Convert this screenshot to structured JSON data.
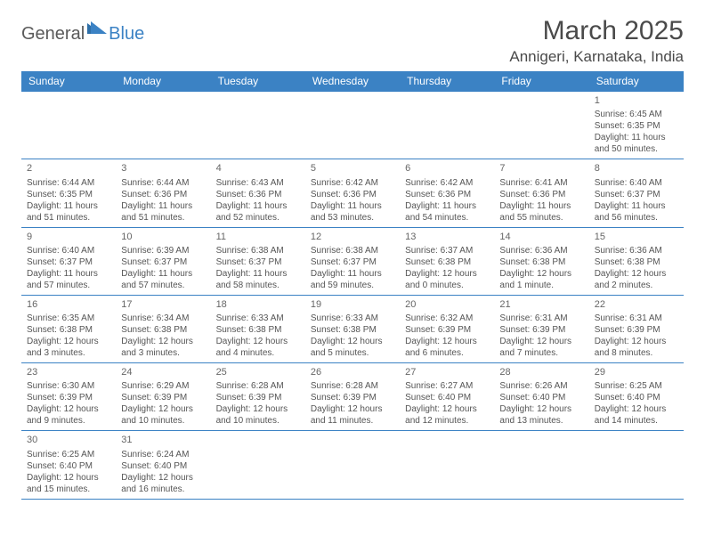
{
  "logo": {
    "part1": "General",
    "part2": "Blue"
  },
  "title": "March 2025",
  "location": "Annigeri, Karnataka, India",
  "colors": {
    "header_bg": "#3b82c4",
    "header_text": "#ffffff",
    "border": "#3b82c4",
    "body_text": "#555555",
    "title_text": "#4a4a4a",
    "logo_gray": "#5a5a5a",
    "logo_blue": "#3b82c4"
  },
  "weekdays": [
    "Sunday",
    "Monday",
    "Tuesday",
    "Wednesday",
    "Thursday",
    "Friday",
    "Saturday"
  ],
  "weeks": [
    [
      null,
      null,
      null,
      null,
      null,
      null,
      {
        "n": "1",
        "rise": "Sunrise: 6:45 AM",
        "set": "Sunset: 6:35 PM",
        "day": "Daylight: 11 hours and 50 minutes."
      }
    ],
    [
      {
        "n": "2",
        "rise": "Sunrise: 6:44 AM",
        "set": "Sunset: 6:35 PM",
        "day": "Daylight: 11 hours and 51 minutes."
      },
      {
        "n": "3",
        "rise": "Sunrise: 6:44 AM",
        "set": "Sunset: 6:36 PM",
        "day": "Daylight: 11 hours and 51 minutes."
      },
      {
        "n": "4",
        "rise": "Sunrise: 6:43 AM",
        "set": "Sunset: 6:36 PM",
        "day": "Daylight: 11 hours and 52 minutes."
      },
      {
        "n": "5",
        "rise": "Sunrise: 6:42 AM",
        "set": "Sunset: 6:36 PM",
        "day": "Daylight: 11 hours and 53 minutes."
      },
      {
        "n": "6",
        "rise": "Sunrise: 6:42 AM",
        "set": "Sunset: 6:36 PM",
        "day": "Daylight: 11 hours and 54 minutes."
      },
      {
        "n": "7",
        "rise": "Sunrise: 6:41 AM",
        "set": "Sunset: 6:36 PM",
        "day": "Daylight: 11 hours and 55 minutes."
      },
      {
        "n": "8",
        "rise": "Sunrise: 6:40 AM",
        "set": "Sunset: 6:37 PM",
        "day": "Daylight: 11 hours and 56 minutes."
      }
    ],
    [
      {
        "n": "9",
        "rise": "Sunrise: 6:40 AM",
        "set": "Sunset: 6:37 PM",
        "day": "Daylight: 11 hours and 57 minutes."
      },
      {
        "n": "10",
        "rise": "Sunrise: 6:39 AM",
        "set": "Sunset: 6:37 PM",
        "day": "Daylight: 11 hours and 57 minutes."
      },
      {
        "n": "11",
        "rise": "Sunrise: 6:38 AM",
        "set": "Sunset: 6:37 PM",
        "day": "Daylight: 11 hours and 58 minutes."
      },
      {
        "n": "12",
        "rise": "Sunrise: 6:38 AM",
        "set": "Sunset: 6:37 PM",
        "day": "Daylight: 11 hours and 59 minutes."
      },
      {
        "n": "13",
        "rise": "Sunrise: 6:37 AM",
        "set": "Sunset: 6:38 PM",
        "day": "Daylight: 12 hours and 0 minutes."
      },
      {
        "n": "14",
        "rise": "Sunrise: 6:36 AM",
        "set": "Sunset: 6:38 PM",
        "day": "Daylight: 12 hours and 1 minute."
      },
      {
        "n": "15",
        "rise": "Sunrise: 6:36 AM",
        "set": "Sunset: 6:38 PM",
        "day": "Daylight: 12 hours and 2 minutes."
      }
    ],
    [
      {
        "n": "16",
        "rise": "Sunrise: 6:35 AM",
        "set": "Sunset: 6:38 PM",
        "day": "Daylight: 12 hours and 3 minutes."
      },
      {
        "n": "17",
        "rise": "Sunrise: 6:34 AM",
        "set": "Sunset: 6:38 PM",
        "day": "Daylight: 12 hours and 3 minutes."
      },
      {
        "n": "18",
        "rise": "Sunrise: 6:33 AM",
        "set": "Sunset: 6:38 PM",
        "day": "Daylight: 12 hours and 4 minutes."
      },
      {
        "n": "19",
        "rise": "Sunrise: 6:33 AM",
        "set": "Sunset: 6:38 PM",
        "day": "Daylight: 12 hours and 5 minutes."
      },
      {
        "n": "20",
        "rise": "Sunrise: 6:32 AM",
        "set": "Sunset: 6:39 PM",
        "day": "Daylight: 12 hours and 6 minutes."
      },
      {
        "n": "21",
        "rise": "Sunrise: 6:31 AM",
        "set": "Sunset: 6:39 PM",
        "day": "Daylight: 12 hours and 7 minutes."
      },
      {
        "n": "22",
        "rise": "Sunrise: 6:31 AM",
        "set": "Sunset: 6:39 PM",
        "day": "Daylight: 12 hours and 8 minutes."
      }
    ],
    [
      {
        "n": "23",
        "rise": "Sunrise: 6:30 AM",
        "set": "Sunset: 6:39 PM",
        "day": "Daylight: 12 hours and 9 minutes."
      },
      {
        "n": "24",
        "rise": "Sunrise: 6:29 AM",
        "set": "Sunset: 6:39 PM",
        "day": "Daylight: 12 hours and 10 minutes."
      },
      {
        "n": "25",
        "rise": "Sunrise: 6:28 AM",
        "set": "Sunset: 6:39 PM",
        "day": "Daylight: 12 hours and 10 minutes."
      },
      {
        "n": "26",
        "rise": "Sunrise: 6:28 AM",
        "set": "Sunset: 6:39 PM",
        "day": "Daylight: 12 hours and 11 minutes."
      },
      {
        "n": "27",
        "rise": "Sunrise: 6:27 AM",
        "set": "Sunset: 6:40 PM",
        "day": "Daylight: 12 hours and 12 minutes."
      },
      {
        "n": "28",
        "rise": "Sunrise: 6:26 AM",
        "set": "Sunset: 6:40 PM",
        "day": "Daylight: 12 hours and 13 minutes."
      },
      {
        "n": "29",
        "rise": "Sunrise: 6:25 AM",
        "set": "Sunset: 6:40 PM",
        "day": "Daylight: 12 hours and 14 minutes."
      }
    ],
    [
      {
        "n": "30",
        "rise": "Sunrise: 6:25 AM",
        "set": "Sunset: 6:40 PM",
        "day": "Daylight: 12 hours and 15 minutes."
      },
      {
        "n": "31",
        "rise": "Sunrise: 6:24 AM",
        "set": "Sunset: 6:40 PM",
        "day": "Daylight: 12 hours and 16 minutes."
      },
      null,
      null,
      null,
      null,
      null
    ]
  ]
}
